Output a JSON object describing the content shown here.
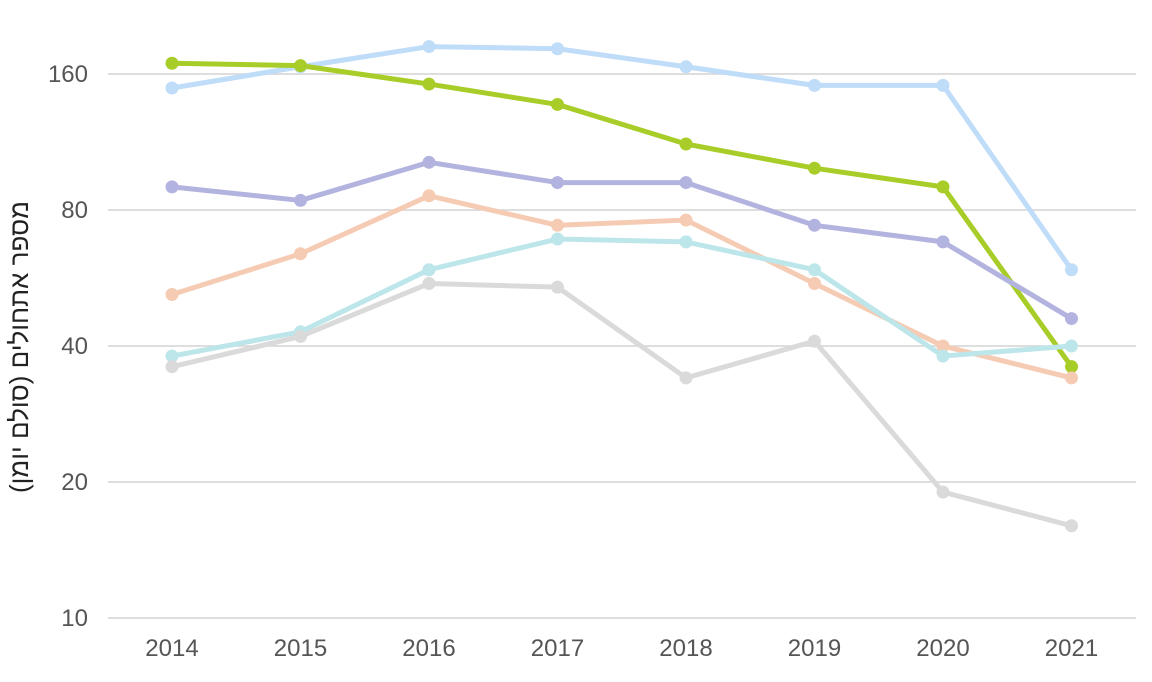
{
  "chart_data": {
    "type": "line",
    "title": "",
    "xlabel": "",
    "ylabel": "מספר אתחולים (סולם יומן)",
    "y_scale": "log2",
    "ylim": [
      10,
      190
    ],
    "y_ticks": [
      10,
      20,
      40,
      80,
      160
    ],
    "grid": true,
    "legend": "none",
    "categories": [
      "2014",
      "2015",
      "2016",
      "2017",
      "2018",
      "2019",
      "2020",
      "2021"
    ],
    "series": [
      {
        "name": "series-light-blue",
        "color": "#bfdcf8",
        "values": [
          149,
          166,
          184,
          182,
          166,
          151,
          151,
          59
        ]
      },
      {
        "name": "series-green",
        "color": "#a8cd28",
        "values": [
          169,
          167,
          152,
          137,
          112,
          99,
          90,
          36
        ]
      },
      {
        "name": "series-purple",
        "color": "#b3b3e0",
        "values": [
          90,
          84,
          102,
          92,
          92,
          74,
          68,
          46
        ]
      },
      {
        "name": "series-peach",
        "color": "#f6cbb4",
        "values": [
          52,
          64,
          86,
          74,
          76,
          55,
          40,
          34
        ]
      },
      {
        "name": "series-cyan",
        "color": "#bde6ea",
        "values": [
          38,
          43,
          59,
          69,
          68,
          59,
          38,
          40
        ]
      },
      {
        "name": "series-gray",
        "color": "#dadada",
        "values": [
          36,
          42,
          55,
          54,
          34,
          41,
          19,
          16
        ]
      }
    ]
  }
}
